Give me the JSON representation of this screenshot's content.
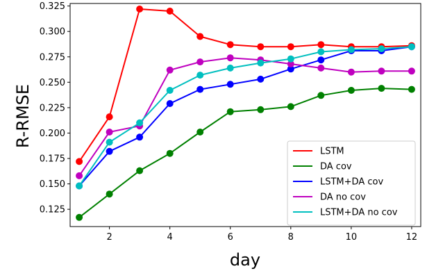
{
  "chart_data": {
    "type": "line",
    "xlabel": "day",
    "ylabel": "R-RMSE",
    "xlim": [
      0.7,
      12.3
    ],
    "ylim": [
      0.108,
      0.3275
    ],
    "x_ticks": [
      2,
      4,
      6,
      8,
      10,
      12
    ],
    "y_ticks": [
      0.125,
      0.15,
      0.175,
      0.2,
      0.225,
      0.25,
      0.275,
      0.3,
      0.325
    ],
    "x_tick_labels": [
      "2",
      "4",
      "6",
      "8",
      "10",
      "12"
    ],
    "y_tick_labels": [
      "0.125",
      "0.150",
      "0.175",
      "0.200",
      "0.225",
      "0.250",
      "0.275",
      "0.300",
      "0.325"
    ],
    "grid": false,
    "legend_position": "lower-right",
    "x": [
      1,
      2,
      3,
      4,
      5,
      6,
      7,
      8,
      9,
      10,
      11,
      12
    ],
    "series": [
      {
        "name": "LSTM",
        "color": "#ff0000",
        "values": [
          0.172,
          0.216,
          0.322,
          0.32,
          0.295,
          0.287,
          0.285,
          0.285,
          0.287,
          0.285,
          0.285,
          0.286
        ]
      },
      {
        "name": "DA cov",
        "color": "#008000",
        "values": [
          0.117,
          0.14,
          0.163,
          0.18,
          0.201,
          0.221,
          0.223,
          0.226,
          0.237,
          0.242,
          0.244,
          0.243
        ]
      },
      {
        "name": "LSTM+DA cov",
        "color": "#0000ff",
        "values": [
          0.148,
          0.182,
          0.196,
          0.229,
          0.243,
          0.248,
          0.253,
          0.263,
          0.272,
          0.281,
          0.281,
          0.285
        ]
      },
      {
        "name": "DA no cov",
        "color": "#bf00bf",
        "values": [
          0.158,
          0.201,
          0.207,
          0.262,
          0.27,
          0.274,
          0.272,
          0.268,
          0.264,
          0.26,
          0.261,
          0.261
        ]
      },
      {
        "name": "LSTM+DA no cov",
        "color": "#00bfbf",
        "values": [
          0.148,
          0.191,
          0.21,
          0.242,
          0.257,
          0.264,
          0.269,
          0.273,
          0.28,
          0.282,
          0.283,
          0.285
        ]
      }
    ]
  }
}
